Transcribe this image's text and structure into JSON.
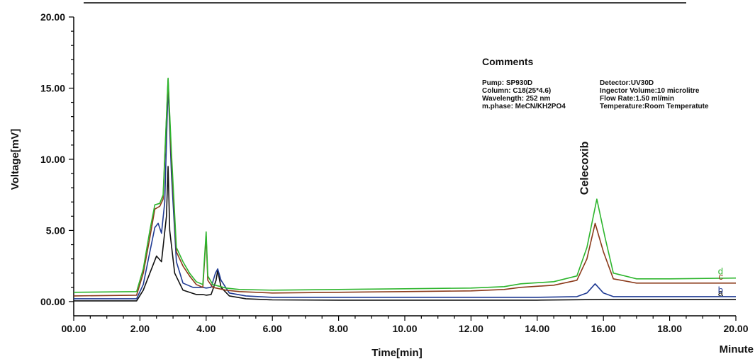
{
  "chart_data": {
    "type": "line",
    "title": "",
    "xlabel": "Time[min]",
    "xunit": "Minute",
    "ylabel": "Voltage[mV]",
    "xlim": [
      0,
      20
    ],
    "ylim": [
      -1,
      20
    ],
    "x_ticks": [
      "00.00",
      "2.00",
      "4.00",
      "6.00",
      "8.00",
      "10.00",
      "12.00",
      "14.00",
      "16.00",
      "18.00",
      "20.00"
    ],
    "y_ticks": [
      "00.00",
      "5.00",
      "10.00",
      "15.00",
      "20.00"
    ],
    "grid": false,
    "annotation": {
      "text": "Celecoxib",
      "x": 15.75,
      "y": 7.3
    },
    "comments": {
      "title": "Comments",
      "left": [
        "Pump: SP930D",
        "Column: C18(25*4.6)",
        "Wavelength: 252 nm",
        "m.phase: MeCN/KH2PO4"
      ],
      "right": [
        "Detector:UV30D",
        "Ingector Volume:10 microlitre",
        "Flow Rate:1.50 ml/min",
        "Temperature:Room Temperatute"
      ]
    },
    "series": [
      {
        "name": "a",
        "color": "#111111",
        "points": [
          [
            0,
            0.05
          ],
          [
            1.9,
            0.05
          ],
          [
            2.1,
            0.8
          ],
          [
            2.3,
            2.0
          ],
          [
            2.5,
            3.2
          ],
          [
            2.65,
            2.8
          ],
          [
            2.8,
            6.0
          ],
          [
            2.85,
            9.5
          ],
          [
            2.9,
            5.0
          ],
          [
            3.05,
            2.0
          ],
          [
            3.3,
            0.8
          ],
          [
            3.7,
            0.5
          ],
          [
            3.9,
            0.5
          ],
          [
            4.0,
            0.45
          ],
          [
            4.15,
            0.5
          ],
          [
            4.3,
            1.5
          ],
          [
            4.35,
            2.2
          ],
          [
            4.45,
            1.0
          ],
          [
            4.7,
            0.4
          ],
          [
            5.2,
            0.2
          ],
          [
            6,
            0.12
          ],
          [
            8,
            0.1
          ],
          [
            10,
            0.1
          ],
          [
            12,
            0.1
          ],
          [
            14,
            0.1
          ],
          [
            16,
            0.15
          ],
          [
            18,
            0.15
          ],
          [
            20,
            0.15
          ]
        ]
      },
      {
        "name": "b",
        "color": "#1f3a93",
        "points": [
          [
            0,
            0.2
          ],
          [
            1.9,
            0.2
          ],
          [
            2.1,
            1.2
          ],
          [
            2.3,
            3.5
          ],
          [
            2.45,
            5.2
          ],
          [
            2.55,
            5.5
          ],
          [
            2.65,
            4.8
          ],
          [
            2.75,
            7.0
          ],
          [
            2.85,
            15.2
          ],
          [
            2.95,
            9.0
          ],
          [
            3.1,
            2.8
          ],
          [
            3.3,
            1.3
          ],
          [
            3.6,
            1.0
          ],
          [
            3.9,
            1.0
          ],
          [
            4.0,
            0.95
          ],
          [
            4.15,
            1.0
          ],
          [
            4.28,
            2.0
          ],
          [
            4.35,
            2.3
          ],
          [
            4.45,
            1.5
          ],
          [
            4.7,
            0.6
          ],
          [
            5.2,
            0.4
          ],
          [
            6,
            0.3
          ],
          [
            8,
            0.3
          ],
          [
            10,
            0.3
          ],
          [
            12,
            0.3
          ],
          [
            14,
            0.3
          ],
          [
            15.2,
            0.35
          ],
          [
            15.5,
            0.6
          ],
          [
            15.75,
            1.25
          ],
          [
            16,
            0.6
          ],
          [
            16.3,
            0.35
          ],
          [
            18,
            0.35
          ],
          [
            20,
            0.35
          ]
        ]
      },
      {
        "name": "c",
        "color": "#8b3a1a",
        "points": [
          [
            0,
            0.4
          ],
          [
            1.9,
            0.45
          ],
          [
            2.1,
            2.0
          ],
          [
            2.3,
            4.5
          ],
          [
            2.45,
            6.5
          ],
          [
            2.6,
            6.7
          ],
          [
            2.7,
            7.2
          ],
          [
            2.85,
            15.6
          ],
          [
            2.95,
            10.0
          ],
          [
            3.1,
            3.5
          ],
          [
            3.3,
            2.5
          ],
          [
            3.5,
            1.8
          ],
          [
            3.7,
            1.2
          ],
          [
            3.9,
            1.0
          ],
          [
            4.0,
            4.6
          ],
          [
            4.05,
            1.5
          ],
          [
            4.2,
            1.0
          ],
          [
            4.6,
            0.8
          ],
          [
            5.0,
            0.7
          ],
          [
            6,
            0.6
          ],
          [
            8,
            0.65
          ],
          [
            10,
            0.7
          ],
          [
            12,
            0.75
          ],
          [
            13,
            0.85
          ],
          [
            13.5,
            1.0
          ],
          [
            14.5,
            1.15
          ],
          [
            15.2,
            1.5
          ],
          [
            15.5,
            3.0
          ],
          [
            15.75,
            5.5
          ],
          [
            16,
            3.5
          ],
          [
            16.3,
            1.6
          ],
          [
            17,
            1.3
          ],
          [
            18,
            1.3
          ],
          [
            20,
            1.3
          ]
        ]
      },
      {
        "name": "d",
        "color": "#2db52d",
        "points": [
          [
            0,
            0.65
          ],
          [
            1.9,
            0.7
          ],
          [
            2.1,
            2.3
          ],
          [
            2.3,
            5.0
          ],
          [
            2.45,
            6.8
          ],
          [
            2.6,
            6.9
          ],
          [
            2.7,
            7.5
          ],
          [
            2.85,
            15.7
          ],
          [
            2.95,
            10.5
          ],
          [
            3.1,
            3.8
          ],
          [
            3.3,
            2.8
          ],
          [
            3.5,
            2.0
          ],
          [
            3.7,
            1.4
          ],
          [
            3.9,
            1.2
          ],
          [
            4.0,
            4.9
          ],
          [
            4.05,
            1.8
          ],
          [
            4.2,
            1.2
          ],
          [
            4.6,
            0.95
          ],
          [
            5.0,
            0.85
          ],
          [
            6,
            0.8
          ],
          [
            8,
            0.85
          ],
          [
            10,
            0.9
          ],
          [
            12,
            0.95
          ],
          [
            13,
            1.05
          ],
          [
            13.5,
            1.25
          ],
          [
            14.5,
            1.4
          ],
          [
            15.2,
            1.8
          ],
          [
            15.5,
            3.8
          ],
          [
            15.8,
            7.2
          ],
          [
            16.05,
            4.5
          ],
          [
            16.3,
            2.0
          ],
          [
            17,
            1.6
          ],
          [
            18,
            1.6
          ],
          [
            20,
            1.65
          ]
        ]
      }
    ]
  }
}
